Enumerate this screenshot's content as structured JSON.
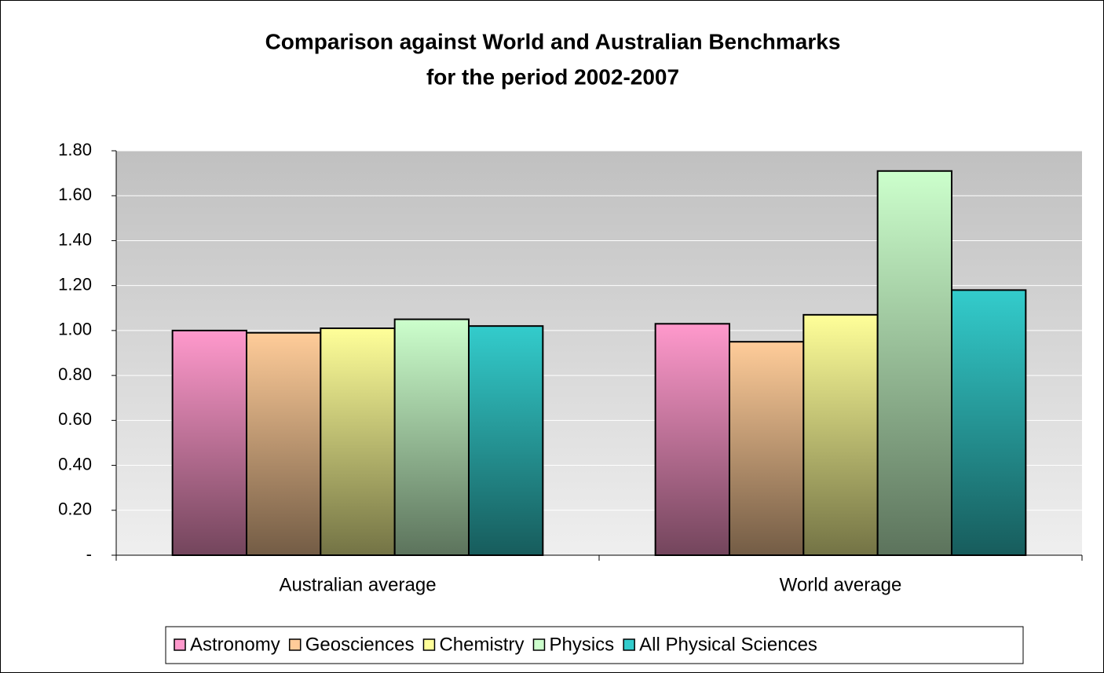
{
  "chart_data": {
    "type": "bar",
    "title": [
      "Comparison against World and Australian Benchmarks",
      "for the period 2002-2007"
    ],
    "categories": [
      "Australian average",
      "World average"
    ],
    "series": [
      {
        "name": "Astronomy",
        "color": "#ff99cc",
        "values": [
          1.0,
          1.03
        ]
      },
      {
        "name": "Geosciences",
        "color": "#ffcc99",
        "values": [
          0.99,
          0.95
        ]
      },
      {
        "name": "Chemistry",
        "color": "#ffff99",
        "values": [
          1.01,
          1.07
        ]
      },
      {
        "name": "Physics",
        "color": "#ccffcc",
        "values": [
          1.05,
          1.71
        ]
      },
      {
        "name": "All Physical Sciences",
        "color": "#33cccc",
        "values": [
          1.02,
          1.18
        ]
      }
    ],
    "ylim": [
      0,
      1.8
    ],
    "yticks": [
      {
        "value": 0,
        "label": "-"
      },
      {
        "value": 0.2,
        "label": "0.20"
      },
      {
        "value": 0.4,
        "label": "0.40"
      },
      {
        "value": 0.6,
        "label": "0.60"
      },
      {
        "value": 0.8,
        "label": "0.80"
      },
      {
        "value": 1.0,
        "label": "1.00"
      },
      {
        "value": 1.2,
        "label": "1.20"
      },
      {
        "value": 1.4,
        "label": "1.40"
      },
      {
        "value": 1.6,
        "label": "1.60"
      },
      {
        "value": 1.8,
        "label": "1.80"
      }
    ],
    "grid": true,
    "legend": "bottom"
  }
}
